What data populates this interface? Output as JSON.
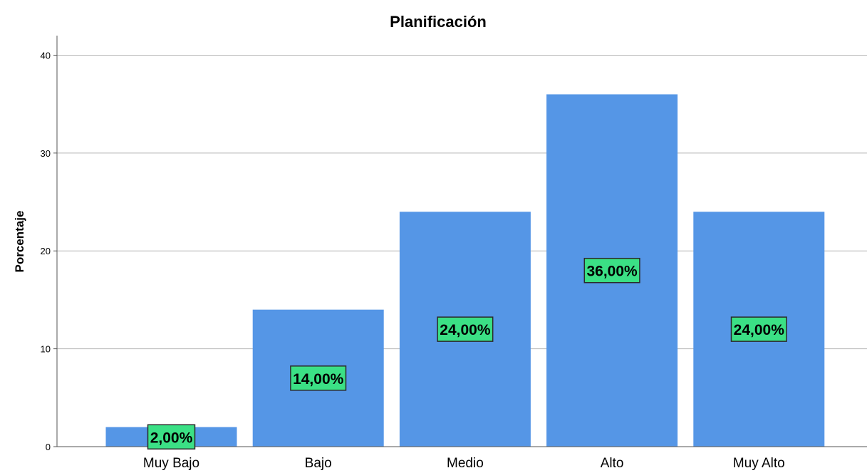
{
  "chart_data": {
    "type": "bar",
    "title": "Planificación",
    "ylabel": "Porcentaje",
    "xlabel": "",
    "categories": [
      "Muy Bajo",
      "Bajo",
      "Medio",
      "Alto",
      "Muy Alto"
    ],
    "values": [
      2,
      14,
      24,
      36,
      24
    ],
    "data_labels": [
      "2,00%",
      "14,00%",
      "24,00%",
      "36,00%",
      "24,00%"
    ],
    "ylim": [
      0,
      42
    ],
    "yticks": [
      "0",
      "10",
      "20",
      "30",
      "40"
    ],
    "grid": true,
    "colors": {
      "bar": "#5596e6",
      "label_bg": "#3be085",
      "label_border": "#2b2b2b",
      "grid": "#b5b5b5"
    }
  }
}
